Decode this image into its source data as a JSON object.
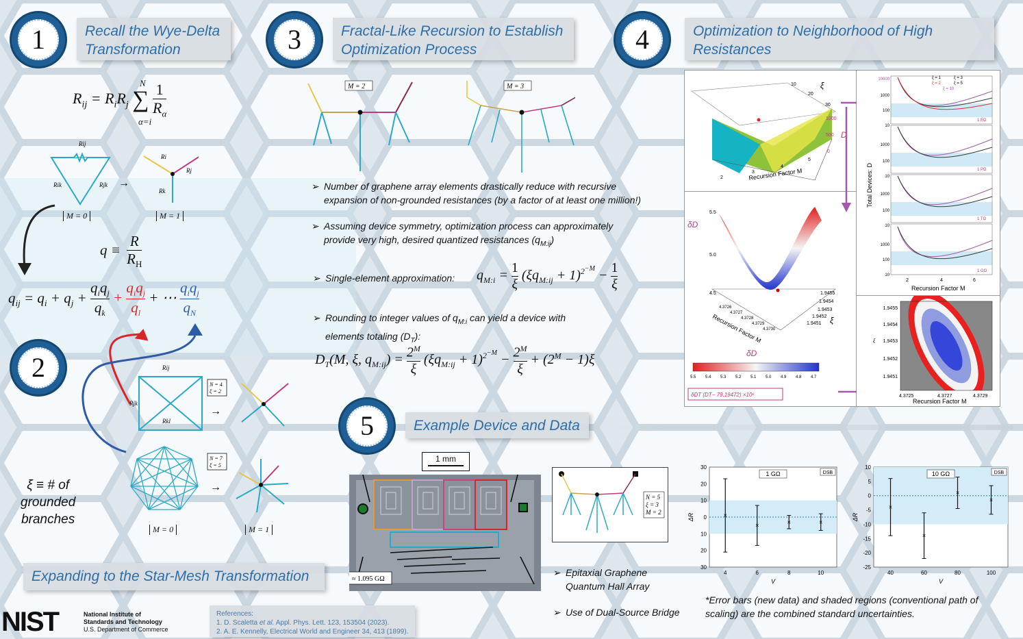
{
  "sections": {
    "s1": {
      "number": "1",
      "title_line1": "Recall the Wye-Delta",
      "title_line2": "Transformation"
    },
    "s2": {
      "number": "2",
      "title": "Expanding to the Star-Mesh Transformation"
    },
    "s3": {
      "number": "3",
      "title_line1": "Fractal-Like Recursion to Establish",
      "title_line2": "Optimization Process"
    },
    "s4": {
      "number": "4",
      "title_line1": "Optimization to Neighborhood of High",
      "title_line2": "Resistances"
    },
    "s5": {
      "number": "5",
      "title": "Example Device and Data"
    }
  },
  "s1": {
    "eq_rij": "R",
    "eq_sub": "ij",
    "eq_rhs": "= R",
    "eq_q": "q ≡",
    "label_m0": "M = 0",
    "label_m1": "M = 1",
    "res_ij": "R",
    "arrow": "→"
  },
  "s2": {
    "xi_line1": "ξ ≡ # of",
    "xi_line2": "grounded",
    "xi_line3": "branches",
    "box_n4": "N = 4",
    "box_xi2": "ξ = 2",
    "box_n7": "N = 7",
    "box_xi5": "ξ = 5",
    "label_m0": "M = 0",
    "label_m1": "M = 1"
  },
  "s3": {
    "m2": "M = 2",
    "m3": "M = 3",
    "bullets": [
      {
        "l1": "Number of graphene array elements drastically reduce with recursive",
        "l2": "expansion of non-grounded resistances (by a factor of at least one million!)"
      },
      {
        "l1": "Assuming device symmetry, optimization process can approximately",
        "l2": "provide very high, desired quantized resistances (q"
      },
      {
        "l1": "Single-element approximation:"
      },
      {
        "l1": "Rounding to integer values of q",
        "l2": "elements totaling (D"
      }
    ]
  },
  "s4": {
    "recursion_factor": "Recursion Factor M",
    "total_devices": "Total Devices: D",
    "dt_label": "D",
    "xi": "ξ",
    "ddt": "δD",
    "colorbar_ticks": [
      "5.5",
      "5.4",
      "5.3",
      "5.2",
      "5.1",
      "5.0",
      "4.9",
      "4.8",
      "4.7"
    ],
    "colorbar_formula": "δD",
    "colorbar_formula_rest": "(D",
    "colorbar_formula_tail": "− 79.19472) ×10",
    "legend": [
      "ξ = 1",
      "ξ = 2",
      "ξ = 3",
      "ξ = 5",
      "ξ = 10"
    ],
    "sub_labels": [
      "1 EΩ",
      "1 PΩ",
      "1 TΩ",
      "1 GΩ"
    ],
    "y_ticks_top": [
      "10000",
      "1000",
      "100",
      "10"
    ],
    "y_ticks_mid": [
      "1000",
      "100",
      "10"
    ],
    "x_ticks": [
      "2",
      "4",
      "6"
    ],
    "surf_z_ticks": [
      "0",
      "500",
      "1000"
    ],
    "surf_y_ticks": [
      "10",
      "20",
      "30"
    ],
    "surf_x_ticks": [
      "2",
      "3",
      "4",
      "5"
    ],
    "v_z_ticks": [
      "4.5",
      "5.0",
      "5.5"
    ],
    "v_xi_ticks": [
      "1.9455",
      "1.9454",
      "1.9453",
      "1.9452",
      "1.9451"
    ],
    "v_m_ticks": [
      "4.3726",
      "4.3727",
      "4.3728",
      "4.3729",
      "4.3730"
    ],
    "c_y_ticks": [
      "1.9455",
      "1.9454",
      "1.9453",
      "1.9452",
      "1.9451"
    ],
    "c_x_ticks": [
      "4.3725",
      "4.3727",
      "4.3729"
    ]
  },
  "s5": {
    "scale": "1 mm",
    "res_label": "≈ 1.095 GΩ",
    "box_n": "N = 5",
    "box_xi": "ξ = 3",
    "box_m": "M = 2",
    "bullets": [
      "Epitaxial Graphene",
      "Quantum Hall Array",
      "Use of Dual-Source Bridge"
    ],
    "note_line1": "*Error bars (new data) and shaded regions (conventional path of",
    "note_line2": "scaling) are the combined standard uncertainties."
  },
  "chart_data": [
    {
      "type": "scatter",
      "title": "1 GΩ",
      "badge": "DSB",
      "xlabel": "V",
      "ylabel": "ΔR",
      "x": [
        4,
        6,
        8,
        10
      ],
      "values": [
        1,
        -5,
        -3,
        -3
      ],
      "err": [
        22,
        12,
        4,
        5
      ],
      "xlim": [
        3,
        11
      ],
      "ylim": [
        -30,
        30
      ],
      "y_ticks": [
        "30",
        "20",
        "10",
        "0",
        "10",
        "20",
        "30"
      ]
    },
    {
      "type": "scatter",
      "title": "10 GΩ",
      "badge": "DSB",
      "xlabel": "V",
      "ylabel": "ΔR",
      "x": [
        40,
        60,
        80,
        100
      ],
      "values": [
        -4,
        -14,
        1,
        -1.5
      ],
      "err": [
        10,
        8,
        5.5,
        5
      ],
      "xlim": [
        30,
        110
      ],
      "ylim": [
        -25,
        10
      ],
      "y_ticks": [
        "10",
        "5",
        "0",
        "-5",
        "-10",
        "-15",
        "-20",
        "-25"
      ]
    }
  ],
  "footer": {
    "nist": "NIST",
    "org1": "National Institute of",
    "org2": "Standards and Technology",
    "org3": "U.S. Department of Commerce",
    "refs_title": "References:",
    "ref1_a": "1.   D. Scaletta",
    "ref1_b": "et al.",
    "ref1_c": "Appl. Phys. Lett. 123, 153504 (2023).",
    "ref2": "2.   A. E. Kennelly, Electrical World and Engineer 34, 413 (1899)."
  },
  "colors": {
    "accent": "#2e6ea8",
    "badge": "#1f5f95",
    "teal": "#2aa9c6",
    "red": "#d9252a",
    "blue": "#2f5aa6"
  }
}
